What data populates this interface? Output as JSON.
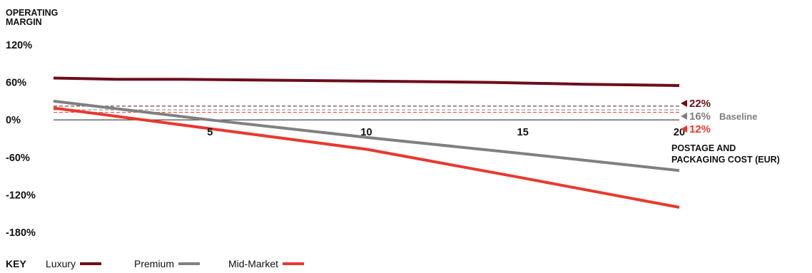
{
  "colors": {
    "luxury": "#6e0c1a",
    "premium": "#808080",
    "mid_market": "#e8392f",
    "axis": "#333333",
    "text": "#111111"
  },
  "chart_data": {
    "type": "line",
    "ylabel": "OPERATING MARGIN",
    "xlabel": "POSTAGE AND PACKAGING COST (EUR)",
    "xlim": [
      0,
      20
    ],
    "ylim": [
      -180,
      120
    ],
    "x_ticks": [
      {
        "value": 5,
        "label": "5"
      },
      {
        "value": 10,
        "label": "10"
      },
      {
        "value": 15,
        "label": "15"
      },
      {
        "value": 20,
        "label": "20"
      }
    ],
    "y_ticks": [
      {
        "value": 120,
        "label": "120%"
      },
      {
        "value": 60,
        "label": "60%"
      },
      {
        "value": 0,
        "label": "0%"
      },
      {
        "value": -60,
        "label": "-60%"
      },
      {
        "value": -120,
        "label": "-120%"
      },
      {
        "value": -180,
        "label": "-180%"
      }
    ],
    "series": [
      {
        "name": "Luxury",
        "color_key": "luxury",
        "points": [
          [
            0,
            67
          ],
          [
            2,
            65
          ],
          [
            4,
            65
          ],
          [
            10,
            62
          ],
          [
            14,
            60
          ],
          [
            17,
            57
          ],
          [
            20,
            55
          ]
        ]
      },
      {
        "name": "Premium",
        "color_key": "premium",
        "points": [
          [
            0,
            30
          ],
          [
            5,
            0
          ],
          [
            10,
            -28
          ],
          [
            15,
            -54
          ],
          [
            20,
            -81
          ]
        ]
      },
      {
        "name": "Mid-Market",
        "color_key": "mid_market",
        "points": [
          [
            0,
            19
          ],
          [
            5,
            -14
          ],
          [
            10,
            -47
          ],
          [
            15,
            -93
          ],
          [
            20,
            -140
          ]
        ]
      }
    ],
    "baselines": [
      {
        "value": 22,
        "label": "22%",
        "color_key": "luxury",
        "note": ""
      },
      {
        "value": 16,
        "label": "16%",
        "color_key": "premium",
        "note": "Baseline"
      },
      {
        "value": 12,
        "label": "12%",
        "color_key": "mid_market",
        "note": ""
      }
    ],
    "legend": {
      "position": "bottom-left",
      "title": "KEY"
    }
  }
}
